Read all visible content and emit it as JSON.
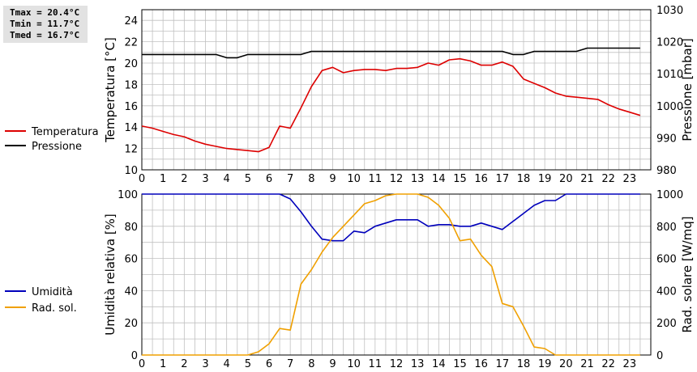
{
  "stats": {
    "tmax": "Tmax = 20.4°C",
    "tmin": "Tmin = 11.7°C",
    "tmed": "Tmed = 16.7°C"
  },
  "colors": {
    "temperature": "#dd0000",
    "pressure": "#000000",
    "humidity": "#0000bb",
    "radiation": "#f0a000",
    "grid": "#c0c0c0"
  },
  "chart_data": [
    {
      "type": "line",
      "x_ticks": [
        "0",
        "1",
        "2",
        "3",
        "4",
        "5",
        "6",
        "7",
        "8",
        "9",
        "10",
        "11",
        "12",
        "13",
        "14",
        "15",
        "16",
        "17",
        "18",
        "19",
        "20",
        "21",
        "22",
        "23"
      ],
      "xlim": [
        0,
        24
      ],
      "ylabel_left": "Temperatura [°C]",
      "ylabel_right": "Pressione [mbar]",
      "ylim_left": [
        10,
        25
      ],
      "ylim_right": [
        980,
        1030
      ],
      "y_ticks_left": [
        "10",
        "12",
        "14",
        "16",
        "18",
        "20",
        "22",
        "24"
      ],
      "y_ticks_right": [
        "980",
        "990",
        "1000",
        "1010",
        "1020",
        "1030"
      ],
      "legend": [
        "Temperatura",
        "Pressione"
      ],
      "series": [
        {
          "name": "Temperatura",
          "axis": "left",
          "x": [
            0,
            0.5,
            1,
            1.5,
            2,
            2.5,
            3,
            3.5,
            4,
            4.5,
            5,
            5.5,
            6,
            6.5,
            7,
            7.5,
            8,
            8.5,
            9,
            9.5,
            10,
            10.5,
            11,
            11.5,
            12,
            12.5,
            13,
            13.5,
            14,
            14.5,
            15,
            15.5,
            16,
            16.5,
            17,
            17.5,
            18,
            18.5,
            19,
            19.5,
            20,
            20.5,
            21,
            21.5,
            22,
            22.5,
            23,
            23.5
          ],
          "y": [
            14.1,
            13.9,
            13.6,
            13.3,
            13.1,
            12.7,
            12.4,
            12.2,
            12.0,
            11.9,
            11.8,
            11.7,
            12.1,
            14.1,
            13.9,
            15.8,
            17.8,
            19.3,
            19.6,
            19.1,
            19.3,
            19.4,
            19.4,
            19.3,
            19.5,
            19.5,
            19.6,
            20.0,
            19.8,
            20.3,
            20.4,
            20.2,
            19.8,
            19.8,
            20.1,
            19.7,
            18.5,
            18.1,
            17.7,
            17.2,
            16.9,
            16.8,
            16.7,
            16.6,
            16.1,
            15.7,
            15.4,
            15.1
          ]
        },
        {
          "name": "Pressione",
          "axis": "right",
          "x": [
            0,
            0.5,
            1,
            1.5,
            2,
            2.5,
            3,
            3.5,
            4,
            4.5,
            5,
            5.5,
            6,
            6.5,
            7,
            7.5,
            8,
            8.5,
            9,
            9.5,
            10,
            10.5,
            11,
            11.5,
            12,
            12.5,
            13,
            13.5,
            14,
            14.5,
            15,
            15.5,
            16,
            16.5,
            17,
            17.5,
            18,
            18.5,
            19,
            19.5,
            20,
            20.5,
            21,
            21.5,
            22,
            22.5,
            23,
            23.5
          ],
          "y": [
            1016,
            1016,
            1016,
            1016,
            1016,
            1016,
            1016,
            1016,
            1015,
            1015,
            1016,
            1016,
            1016,
            1016,
            1016,
            1016,
            1017,
            1017,
            1017,
            1017,
            1017,
            1017,
            1017,
            1017,
            1017,
            1017,
            1017,
            1017,
            1017,
            1017,
            1017,
            1017,
            1017,
            1017,
            1017,
            1016,
            1016,
            1017,
            1017,
            1017,
            1017,
            1017,
            1018,
            1018,
            1018,
            1018,
            1018,
            1018
          ]
        }
      ]
    },
    {
      "type": "line",
      "x_ticks": [
        "0",
        "1",
        "2",
        "3",
        "4",
        "5",
        "6",
        "7",
        "8",
        "9",
        "10",
        "11",
        "12",
        "13",
        "14",
        "15",
        "16",
        "17",
        "18",
        "19",
        "20",
        "21",
        "22",
        "23"
      ],
      "xlim": [
        0,
        24
      ],
      "ylabel_left": "Umidità relativa [%]",
      "ylabel_right": "Rad. solare [W/mq]",
      "ylim_left": [
        0,
        100
      ],
      "ylim_right": [
        0,
        1000
      ],
      "y_ticks_left": [
        "0",
        "20",
        "40",
        "60",
        "80",
        "100"
      ],
      "y_ticks_right": [
        "0",
        "200",
        "400",
        "600",
        "800",
        "1000"
      ],
      "legend": [
        "Umidità",
        "Rad. sol."
      ],
      "series": [
        {
          "name": "Umidità",
          "axis": "left",
          "x": [
            0,
            0.5,
            1,
            1.5,
            2,
            2.5,
            3,
            3.5,
            4,
            4.5,
            5,
            5.5,
            6,
            6.5,
            7,
            7.5,
            8,
            8.5,
            9,
            9.5,
            10,
            10.5,
            11,
            11.5,
            12,
            12.5,
            13,
            13.5,
            14,
            14.5,
            15,
            15.5,
            16,
            16.5,
            17,
            17.5,
            18,
            18.5,
            19,
            19.5,
            20,
            20.5,
            21,
            21.5,
            22,
            22.5,
            23,
            23.5
          ],
          "y": [
            100,
            100,
            100,
            100,
            100,
            100,
            100,
            100,
            100,
            100,
            100,
            100,
            100,
            100,
            97,
            89,
            80,
            72,
            71,
            71,
            77,
            76,
            80,
            82,
            84,
            84,
            84,
            80,
            81,
            81,
            80,
            80,
            82,
            80,
            78,
            83,
            88,
            93,
            96,
            96,
            100,
            100,
            100,
            100,
            100,
            100,
            100,
            100
          ]
        },
        {
          "name": "Rad. sol.",
          "axis": "right",
          "x": [
            0,
            0.5,
            1,
            1.5,
            2,
            2.5,
            3,
            3.5,
            4,
            4.5,
            5,
            5.5,
            6,
            6.5,
            7,
            7.5,
            8,
            8.5,
            9,
            9.5,
            10,
            10.5,
            11,
            11.5,
            12,
            12.5,
            13,
            13.5,
            14,
            14.5,
            15,
            15.5,
            16,
            16.5,
            17,
            17.5,
            18,
            18.5,
            19,
            19.5,
            20,
            20.5,
            21,
            21.5,
            22,
            22.5,
            23,
            23.5
          ],
          "y": [
            0,
            0,
            0,
            0,
            0,
            0,
            0,
            0,
            0,
            0,
            0,
            20,
            70,
            165,
            155,
            440,
            530,
            640,
            730,
            800,
            870,
            940,
            960,
            990,
            1000,
            1000,
            1000,
            980,
            930,
            850,
            710,
            720,
            620,
            550,
            320,
            300,
            180,
            50,
            40,
            0,
            0,
            0,
            0,
            0,
            0,
            0,
            0,
            0
          ]
        }
      ]
    }
  ]
}
